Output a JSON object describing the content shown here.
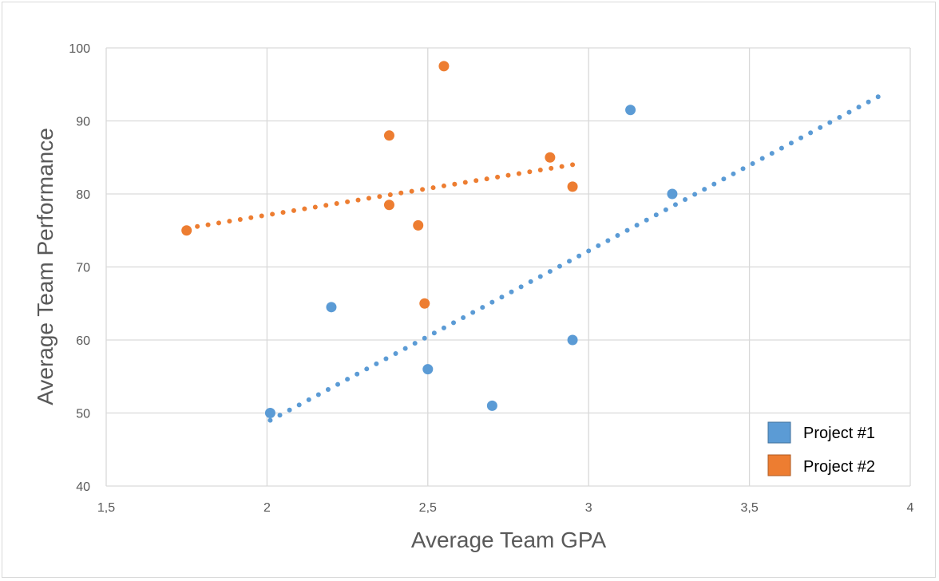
{
  "chart_data": {
    "type": "scatter",
    "title": "",
    "xlabel": "Average Team GPA",
    "ylabel": "Average Team Performance",
    "xlim": [
      1.5,
      4
    ],
    "ylim": [
      40,
      100
    ],
    "xticks": [
      1.5,
      2,
      2.5,
      3,
      3.5,
      4
    ],
    "xtick_labels": [
      "1,5",
      "2",
      "2,5",
      "3",
      "3,5",
      "4"
    ],
    "yticks": [
      40,
      50,
      60,
      70,
      80,
      90,
      100
    ],
    "ytick_labels": [
      "40",
      "50",
      "60",
      "70",
      "80",
      "90",
      "100"
    ],
    "grid": true,
    "legend_position": "bottom-right",
    "series": [
      {
        "name": "Project #1",
        "color": "#5B9BD5",
        "points": [
          {
            "x": 2.01,
            "y": 50
          },
          {
            "x": 2.2,
            "y": 64.5
          },
          {
            "x": 2.5,
            "y": 56
          },
          {
            "x": 2.7,
            "y": 51
          },
          {
            "x": 2.95,
            "y": 60
          },
          {
            "x": 3.13,
            "y": 91.5
          },
          {
            "x": 3.26,
            "y": 80
          }
        ],
        "trendline": {
          "type": "linear",
          "x_start": 2.01,
          "y_start": 49,
          "x_end": 3.9,
          "y_end": 93.3
        }
      },
      {
        "name": "Project #2",
        "color": "#ED7D31",
        "points": [
          {
            "x": 1.75,
            "y": 75
          },
          {
            "x": 2.38,
            "y": 88
          },
          {
            "x": 2.38,
            "y": 78.5
          },
          {
            "x": 2.47,
            "y": 75.7
          },
          {
            "x": 2.49,
            "y": 65
          },
          {
            "x": 2.55,
            "y": 97.5
          },
          {
            "x": 2.88,
            "y": 85
          },
          {
            "x": 2.95,
            "y": 81
          }
        ],
        "trendline": {
          "type": "linear",
          "x_start": 1.75,
          "y_start": 75.3,
          "x_end": 2.95,
          "y_end": 84
        }
      }
    ]
  }
}
